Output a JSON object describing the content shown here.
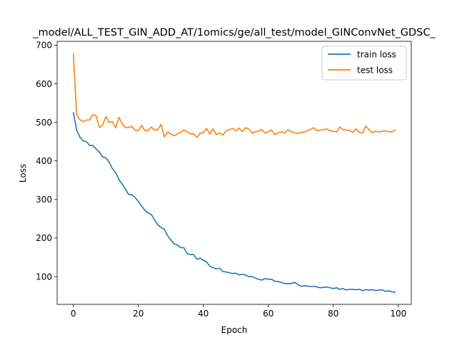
{
  "chart_data": {
    "type": "line",
    "title": "_model/ALL_TEST_GIN_ADD_AT/1omics/ge/all_test/model_GINConvNet_GDSC_",
    "xlabel": "Epoch",
    "ylabel": "Loss",
    "xlim": [
      -5,
      104
    ],
    "ylim": [
      28,
      710
    ],
    "xticks": [
      0,
      20,
      40,
      60,
      80,
      100
    ],
    "yticks": [
      100,
      200,
      300,
      400,
      500,
      600,
      700
    ],
    "grid": false,
    "legend_position": "upper right",
    "series": [
      {
        "name": "train loss",
        "color": "#1f77b4",
        "x": [
          0,
          1,
          2,
          3,
          4,
          5,
          6,
          7,
          8,
          9,
          10,
          11,
          12,
          13,
          14,
          15,
          16,
          17,
          18,
          19,
          20,
          21,
          22,
          23,
          24,
          25,
          26,
          27,
          28,
          29,
          30,
          31,
          32,
          33,
          34,
          35,
          36,
          37,
          38,
          39,
          40,
          41,
          42,
          43,
          44,
          45,
          46,
          47,
          48,
          49,
          50,
          51,
          52,
          53,
          54,
          55,
          56,
          57,
          58,
          59,
          60,
          61,
          62,
          63,
          64,
          65,
          66,
          67,
          68,
          69,
          70,
          71,
          72,
          73,
          74,
          75,
          76,
          77,
          78,
          79,
          80,
          81,
          82,
          83,
          84,
          85,
          86,
          87,
          88,
          89,
          90,
          91,
          92,
          93,
          94,
          95,
          96,
          97,
          98,
          99
        ],
        "values": [
          525,
          480,
          462,
          452,
          450,
          440,
          440,
          431,
          423,
          410,
          408,
          397,
          380,
          370,
          352,
          340,
          327,
          313,
          312,
          305,
          295,
          283,
          272,
          265,
          261,
          247,
          234,
          227,
          223,
          206,
          195,
          185,
          182,
          175,
          175,
          160,
          157,
          157,
          145,
          148,
          142,
          138,
          127,
          123,
          120,
          122,
          113,
          112,
          110,
          108,
          109,
          104,
          106,
          104,
          100,
          100,
          96,
          93,
          91,
          95,
          93,
          93,
          88,
          87,
          85,
          82,
          82,
          82,
          85,
          80,
          75,
          76,
          76,
          74,
          75,
          73,
          71,
          72,
          73,
          71,
          69,
          71,
          67,
          69,
          65,
          67,
          67,
          66,
          67,
          64,
          66,
          65,
          66,
          64,
          65,
          66,
          62,
          63,
          61,
          59
        ]
      },
      {
        "name": "test loss",
        "color": "#ff7f0e",
        "x": [
          0,
          1,
          2,
          3,
          4,
          5,
          6,
          7,
          8,
          9,
          10,
          11,
          12,
          13,
          14,
          15,
          16,
          17,
          18,
          19,
          20,
          21,
          22,
          23,
          24,
          25,
          26,
          27,
          28,
          29,
          30,
          31,
          32,
          33,
          34,
          35,
          36,
          37,
          38,
          39,
          40,
          41,
          42,
          43,
          44,
          45,
          46,
          47,
          48,
          49,
          50,
          51,
          52,
          53,
          54,
          55,
          56,
          57,
          58,
          59,
          60,
          61,
          62,
          63,
          64,
          65,
          66,
          67,
          68,
          69,
          70,
          71,
          72,
          73,
          74,
          75,
          76,
          77,
          78,
          79,
          80,
          81,
          82,
          83,
          84,
          85,
          86,
          87,
          88,
          89,
          90,
          91,
          92,
          93,
          94,
          95,
          96,
          97,
          98,
          99
        ],
        "values": [
          678,
          520,
          507,
          502,
          506,
          506,
          520,
          517,
          487,
          492,
          515,
          500,
          502,
          486,
          513,
          497,
          487,
          487,
          489,
          480,
          478,
          492,
          478,
          479,
          488,
          480,
          481,
          495,
          462,
          475,
          470,
          465,
          470,
          474,
          480,
          476,
          470,
          470,
          461,
          472,
          473,
          484,
          470,
          483,
          468,
          473,
          467,
          478,
          481,
          484,
          478,
          485,
          476,
          486,
          483,
          472,
          476,
          477,
          481,
          472,
          476,
          480,
          468,
          473,
          476,
          472,
          481,
          476,
          473,
          471,
          474,
          475,
          478,
          482,
          486,
          478,
          480,
          481,
          483,
          478,
          477,
          475,
          488,
          481,
          480,
          479,
          474,
          483,
          474,
          472,
          490,
          481,
          473,
          477,
          475,
          477,
          478,
          476,
          475,
          480
        ]
      }
    ]
  }
}
